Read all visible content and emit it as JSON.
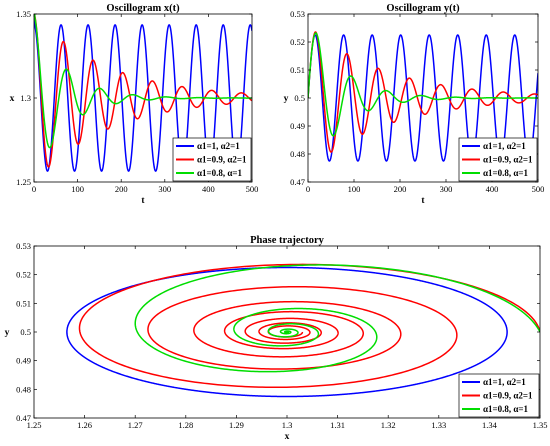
{
  "chart_data": [
    {
      "id": "x",
      "type": "line",
      "title": "Oscillogram x(t)",
      "xlabel": "t",
      "ylabel": "x",
      "xlim": [
        0,
        500
      ],
      "ylim": [
        1.25,
        1.35
      ],
      "xticks": [
        "0",
        "100",
        "200",
        "300",
        "400",
        "500"
      ],
      "yticks": [
        "1.25",
        "1.3",
        "1.35"
      ],
      "legend_position": "lower-right",
      "series": [
        {
          "name": "α1=1, α2=1",
          "color": "#0000ff",
          "amplitude": 0.0435,
          "period": 62,
          "decay_time": 0,
          "start": 1.35,
          "equilibrium": 1.3
        },
        {
          "name": "α1=0.9, α2=1",
          "color": "#ff0000",
          "amplitude": 0.05,
          "period": 68,
          "decay_time": 170,
          "start": 1.35,
          "equilibrium": 1.3
        },
        {
          "name": "α1=0.8, α=1",
          "color": "#00dd00",
          "amplitude": 0.05,
          "period": 76,
          "decay_time": 70,
          "start": 1.35,
          "equilibrium": 1.3
        }
      ]
    },
    {
      "id": "y",
      "type": "line",
      "title": "Oscillogram y(t)",
      "xlabel": "t",
      "ylabel": "y",
      "xlim": [
        0,
        500
      ],
      "ylim": [
        0.47,
        0.53
      ],
      "xticks": [
        "0",
        "100",
        "200",
        "300",
        "400",
        "500"
      ],
      "yticks": [
        "0.47",
        "0.48",
        "0.49",
        "0.5",
        "0.51",
        "0.52",
        "0.53"
      ],
      "legend_position": "lower-right",
      "series": [
        {
          "name": "α1=1, α2=1",
          "color": "#0000ff",
          "amplitude": 0.0225,
          "period": 62,
          "decay_time": 0,
          "start": 0.5,
          "equilibrium": 0.5
        },
        {
          "name": "α1=0.9, α2=1",
          "color": "#ff0000",
          "amplitude": 0.026,
          "period": 68,
          "decay_time": 170,
          "start": 0.5,
          "equilibrium": 0.5
        },
        {
          "name": "α1=0.8, α=1",
          "color": "#00dd00",
          "amplitude": 0.03,
          "period": 76,
          "decay_time": 70,
          "start": 0.5,
          "equilibrium": 0.5
        }
      ]
    },
    {
      "id": "phase",
      "type": "line",
      "title": "Phase trajectory",
      "xlabel": "x",
      "ylabel": "y",
      "xlim": [
        1.25,
        1.35
      ],
      "ylim": [
        0.47,
        0.53
      ],
      "xticks": [
        "1.25",
        "1.26",
        "1.27",
        "1.28",
        "1.29",
        "1.3",
        "1.31",
        "1.32",
        "1.33",
        "1.34",
        "1.35"
      ],
      "yticks": [
        "0.47",
        "0.48",
        "0.49",
        "0.5",
        "0.51",
        "0.52",
        "0.53"
      ],
      "center": [
        1.3,
        0.5
      ],
      "legend_position": "lower-right",
      "series": [
        {
          "name": "α1=1, α2=1",
          "color": "#0000ff",
          "x_amplitude": 0.0435,
          "y_amplitude": 0.0225,
          "turns": 1,
          "decay_per_turn": 1
        },
        {
          "name": "α1=0.9, α2=1",
          "color": "#ff0000",
          "x_amplitude": 0.05,
          "y_amplitude": 0.026,
          "turns": 7,
          "decay_per_turn": 0.67
        },
        {
          "name": "α1=0.8, α=1",
          "color": "#00dd00",
          "x_amplitude": 0.05,
          "y_amplitude": 0.03,
          "turns": 6,
          "decay_per_turn": 0.35
        }
      ]
    }
  ]
}
